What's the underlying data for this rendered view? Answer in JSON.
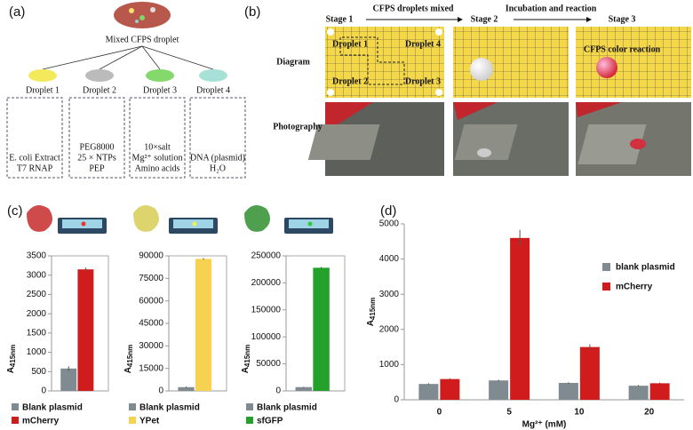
{
  "panel_labels": [
    "(a)",
    "(b)",
    "(c)",
    "(d)"
  ],
  "panel_a": {
    "title": "Mixed CFPS droplet",
    "droplets": [
      {
        "name": "Droplet 1",
        "contents": [
          "E. coli Extract",
          "T7 RNAP"
        ]
      },
      {
        "name": "Droplet 2",
        "contents": [
          "PEG8000",
          "25 × NTPs",
          "PEP"
        ]
      },
      {
        "name": "Droplet 3",
        "contents": [
          "10×salt",
          "Mg²⁺ solution",
          "Amino acids"
        ]
      },
      {
        "name": "Droplet 4",
        "contents": [
          "DNA (plasmid)",
          "H₂O"
        ]
      }
    ]
  },
  "panel_b": {
    "stages": [
      "Stage 1",
      "Stage 2",
      "Stage 3"
    ],
    "steps": [
      "CFPS droplets mixed",
      "Incubation and reaction"
    ],
    "rows": [
      "Diagram",
      "Photography"
    ],
    "droplets": [
      "Droplet 1",
      "Droplet 2",
      "Droplet 3",
      "Droplet 4"
    ],
    "reaction": "CFPS color reaction"
  },
  "chart_data": [
    {
      "type": "bar",
      "ylabel": "A",
      "ylabel_sub": "415nm",
      "categories": [
        "Blank plasmid",
        "mCherry"
      ],
      "values": [
        580,
        3150
      ],
      "errors": [
        60,
        50
      ],
      "colors": [
        "#7f8a91",
        "#d01c1c"
      ],
      "ylim": [
        0,
        3500
      ],
      "yticks": [
        0,
        500,
        1000,
        1500,
        2000,
        2500,
        3000,
        3500
      ]
    },
    {
      "type": "bar",
      "ylabel": "A",
      "ylabel_sub": "415nm",
      "categories": [
        "Blank plasmid",
        "YPet"
      ],
      "values": [
        2500,
        88000
      ],
      "errors": [
        400,
        500
      ],
      "colors": [
        "#7f8a91",
        "#f7d251"
      ],
      "ylim": [
        0,
        90000
      ],
      "yticks": [
        0,
        15000,
        30000,
        45000,
        60000,
        75000,
        90000
      ]
    },
    {
      "type": "bar",
      "ylabel": "A",
      "ylabel_sub": "415nm",
      "categories": [
        "Blank plasmid",
        "sfGFP"
      ],
      "values": [
        7000,
        228000
      ],
      "errors": [
        800,
        1500
      ],
      "colors": [
        "#7f8a91",
        "#23a12b"
      ],
      "ylim": [
        0,
        250000
      ],
      "yticks": [
        0,
        50000,
        100000,
        150000,
        200000,
        250000
      ]
    },
    {
      "type": "grouped_bar",
      "ylabel": "A",
      "ylabel_sub": "415nm",
      "xlabel": "Mg²⁺ (mM)",
      "categories": [
        "0",
        "5",
        "10",
        "20"
      ],
      "series": [
        {
          "name": "blank plasmid",
          "color": "#7f8a91",
          "values": [
            450,
            550,
            480,
            400
          ],
          "errors": [
            20,
            20,
            20,
            20
          ]
        },
        {
          "name": "mCherry",
          "color": "#d01c1c",
          "values": [
            590,
            4600,
            1500,
            470
          ],
          "errors": [
            20,
            230,
            80,
            20
          ]
        }
      ],
      "ylim": [
        0,
        5000
      ],
      "yticks": [
        0,
        1000,
        2000,
        3000,
        4000,
        5000
      ]
    }
  ]
}
